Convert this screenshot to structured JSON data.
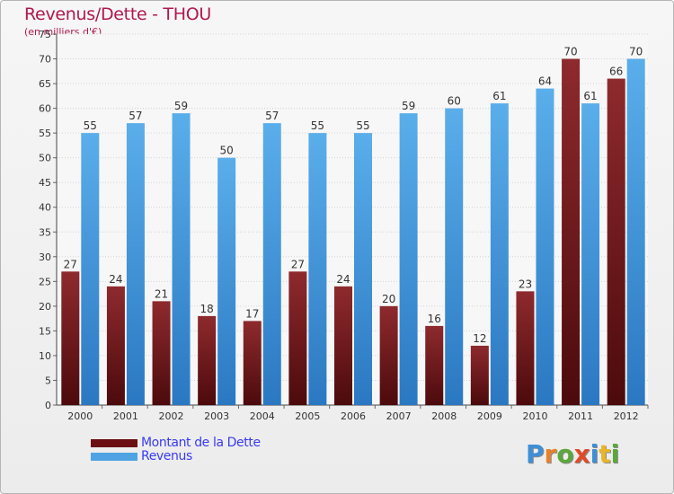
{
  "title": "Revenus/Dette - THOU",
  "subtitle": "(en milliers d'€)",
  "colors": {
    "dette": "#7a1a1e",
    "revenus": "#4fa3e3",
    "title": "#b0184e",
    "legend_text": "#3a3af2"
  },
  "legend": [
    {
      "label": "Montant de la Dette",
      "color": "#6b0f12"
    },
    {
      "label": "Revenus",
      "color": "#4fa3e3"
    }
  ],
  "logo": {
    "text": "Proxiti"
  },
  "chart_data": {
    "type": "bar",
    "categories": [
      "2000",
      "2001",
      "2002",
      "2003",
      "2004",
      "2005",
      "2006",
      "2007",
      "2008",
      "2009",
      "2010",
      "2011",
      "2012"
    ],
    "series": [
      {
        "name": "Montant de la Dette",
        "values": [
          27,
          24,
          21,
          18,
          17,
          27,
          24,
          20,
          16,
          12,
          23,
          70,
          66
        ]
      },
      {
        "name": "Revenus",
        "values": [
          55,
          57,
          59,
          50,
          57,
          55,
          55,
          59,
          60,
          61,
          64,
          61,
          70
        ]
      }
    ],
    "ylim": [
      0,
      75
    ],
    "yticks": [
      0,
      5,
      10,
      15,
      20,
      25,
      30,
      35,
      40,
      45,
      50,
      55,
      60,
      65,
      70,
      75
    ],
    "grid": true,
    "legend_position": "bottom-left"
  }
}
